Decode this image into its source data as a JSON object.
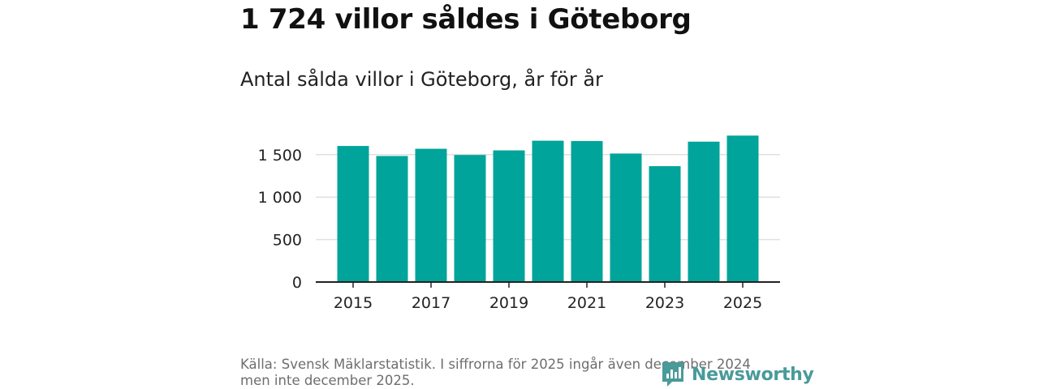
{
  "header": {
    "title": "1 724 villor såldes i Göteborg",
    "subtitle": "Antal sålda villor i Göteborg, år för år"
  },
  "footer": {
    "source": "Källa: Svensk Mäklarstatistik. I siffrorna för 2025 ingår även december 2024 men inte december 2025.",
    "brand": "Newsworthy"
  },
  "colors": {
    "bar": "#00a49a",
    "grid": "#e0e0e0",
    "axis": "#222222",
    "brand": "#4a9a9a"
  },
  "chart_data": {
    "type": "bar",
    "title": "Antal sålda villor i Göteborg, år för år",
    "xlabel": "",
    "ylabel": "",
    "x": [
      2015,
      2016,
      2017,
      2018,
      2019,
      2020,
      2021,
      2022,
      2023,
      2024,
      2025
    ],
    "values": [
      1602,
      1484,
      1569,
      1496,
      1550,
      1664,
      1660,
      1513,
      1364,
      1653,
      1724
    ],
    "x_tick_labels": [
      "2015",
      "2017",
      "2019",
      "2021",
      "2023",
      "2025"
    ],
    "y_ticks": [
      0,
      500,
      1000,
      1500
    ],
    "y_tick_labels": [
      "0",
      "500",
      "1 000",
      "1 500"
    ],
    "ylim": [
      0,
      1800
    ],
    "grid": true,
    "legend": "none"
  }
}
